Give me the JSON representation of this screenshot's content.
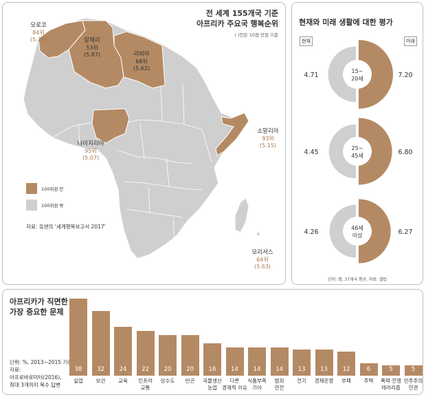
{
  "map": {
    "title_line1": "전 세계 155개국 기준",
    "title_line2": "아프리카 주요국 행복순위",
    "subtitle": "( )안은 10점 만점 기준",
    "countries": [
      {
        "name": "모로코",
        "rank": "84위",
        "score": "(5.24)"
      },
      {
        "name": "알제리",
        "rank": "53위",
        "score": "(5.87)"
      },
      {
        "name": "리비아",
        "rank": "68위",
        "score": "(5.62)"
      },
      {
        "name": "나이지리아",
        "rank": "95위",
        "score": "(5.07)"
      },
      {
        "name": "소말리아",
        "rank": "93위",
        "score": "(5.15)"
      },
      {
        "name": "모리셔스",
        "rank": "64위",
        "score": "(5.63)"
      }
    ],
    "legend": [
      {
        "label": "100위권 안",
        "color": "#b48a64"
      },
      {
        "label": "100위권 밖",
        "color": "#cfcfcf"
      }
    ],
    "source": "자료: 유엔의 '세계행복보고서 2017'"
  },
  "evaluation": {
    "title": "현재와 미래 생활에 대한 평가",
    "tag_present": "현재",
    "tag_future": "미래",
    "groups": [
      {
        "age_line1": "15~",
        "age_line2": "20세",
        "present": 4.71,
        "future": 7.2
      },
      {
        "age_line1": "25~",
        "age_line2": "45세",
        "present": 4.45,
        "future": 6.8
      },
      {
        "age_line1": "46세",
        "age_line2": "이상",
        "present": 4.26,
        "future": 6.27
      }
    ],
    "note": "단위: 점, 37개국 평균, 자료: 갤럽",
    "colors": {
      "present": "#cfcfcf",
      "future": "#b48a64"
    }
  },
  "issues": {
    "title_line1": "아프리카가 직면한",
    "title_line2": "가장 중요한 문제",
    "unit": "단위: %, 2013~2015 기준",
    "source_label": "자료:",
    "source_line1": "아프로바로미터(2016),",
    "source_line2": "최대 3개까지 복수 답변"
  },
  "chart_data": {
    "type": "bar",
    "categories": [
      "실업",
      "보건",
      "교육",
      "인프라 교통",
      "상수도",
      "빈곤",
      "곡물생산 농업",
      "다른 경제적 이슈",
      "식품부족 기아",
      "범죄 안전",
      "전기",
      "경제운영",
      "부패",
      "주택",
      "폭력·전쟁 테러리즘",
      "민주주의 인권"
    ],
    "category_lines": [
      [
        "실업"
      ],
      [
        "보건"
      ],
      [
        "교육"
      ],
      [
        "인프라",
        "교통"
      ],
      [
        "상수도"
      ],
      [
        "빈곤"
      ],
      [
        "곡물생산",
        "농업"
      ],
      [
        "다른",
        "경제적 이슈"
      ],
      [
        "식품부족",
        "기아"
      ],
      [
        "범죄",
        "안전"
      ],
      [
        "전기"
      ],
      [
        "경제운영"
      ],
      [
        "부패"
      ],
      [
        "주택"
      ],
      [
        "폭력·전쟁",
        "테러리즘"
      ],
      [
        "민주주의",
        "인권"
      ]
    ],
    "values": [
      38,
      32,
      24,
      22,
      20,
      20,
      16,
      14,
      14,
      14,
      13,
      13,
      12,
      6,
      5,
      5
    ],
    "bar_color": "#b48a64",
    "ylim": [
      0,
      38
    ]
  }
}
